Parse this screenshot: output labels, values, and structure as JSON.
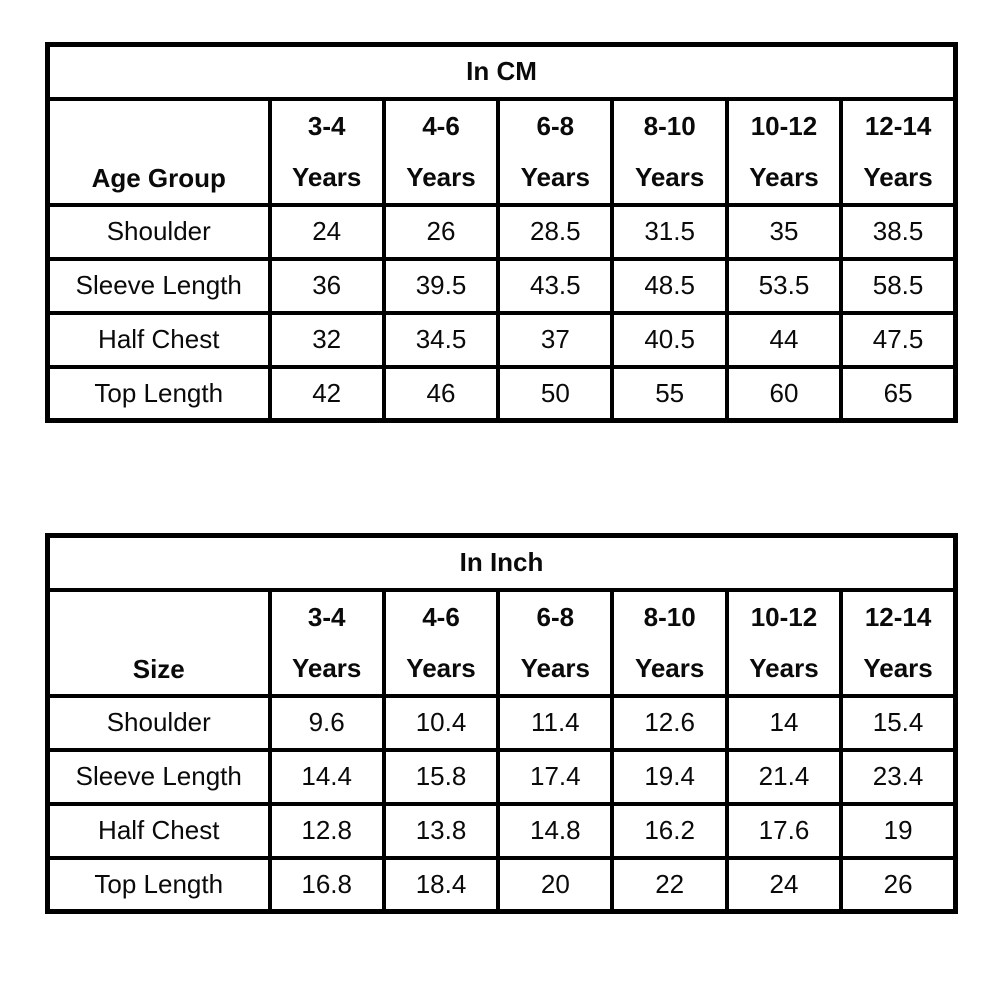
{
  "page": {
    "background_color": "#ffffff",
    "text_color": "#000000",
    "border_color": "#000000"
  },
  "chart_data": [
    {
      "type": "table",
      "title": "In CM",
      "corner_label": "Age Group",
      "columns": [
        {
          "range": "3-4",
          "unit": "Years"
        },
        {
          "range": "4-6",
          "unit": "Years"
        },
        {
          "range": "6-8",
          "unit": "Years"
        },
        {
          "range": "8-10",
          "unit": "Years"
        },
        {
          "range": "10-12",
          "unit": "Years"
        },
        {
          "range": "12-14",
          "unit": "Years"
        }
      ],
      "rows": [
        {
          "label": "Shoulder",
          "values": [
            "24",
            "26",
            "28.5",
            "31.5",
            "35",
            "38.5"
          ]
        },
        {
          "label": "Sleeve Length",
          "values": [
            "36",
            "39.5",
            "43.5",
            "48.5",
            "53.5",
            "58.5"
          ]
        },
        {
          "label": "Half Chest",
          "values": [
            "32",
            "34.5",
            "37",
            "40.5",
            "44",
            "47.5"
          ]
        },
        {
          "label": "Top Length",
          "values": [
            "42",
            "46",
            "50",
            "55",
            "60",
            "65"
          ]
        }
      ]
    },
    {
      "type": "table",
      "title": "In Inch",
      "corner_label": "Size",
      "columns": [
        {
          "range": "3-4",
          "unit": "Years"
        },
        {
          "range": "4-6",
          "unit": "Years"
        },
        {
          "range": "6-8",
          "unit": "Years"
        },
        {
          "range": "8-10",
          "unit": "Years"
        },
        {
          "range": "10-12",
          "unit": "Years"
        },
        {
          "range": "12-14",
          "unit": "Years"
        }
      ],
      "rows": [
        {
          "label": "Shoulder",
          "values": [
            "9.6",
            "10.4",
            "11.4",
            "12.6",
            "14",
            "15.4"
          ]
        },
        {
          "label": "Sleeve Length",
          "values": [
            "14.4",
            "15.8",
            "17.4",
            "19.4",
            "21.4",
            "23.4"
          ]
        },
        {
          "label": "Half Chest",
          "values": [
            "12.8",
            "13.8",
            "14.8",
            "16.2",
            "17.6",
            "19"
          ]
        },
        {
          "label": "Top Length",
          "values": [
            "16.8",
            "18.4",
            "20",
            "22",
            "24",
            "26"
          ]
        }
      ]
    }
  ]
}
